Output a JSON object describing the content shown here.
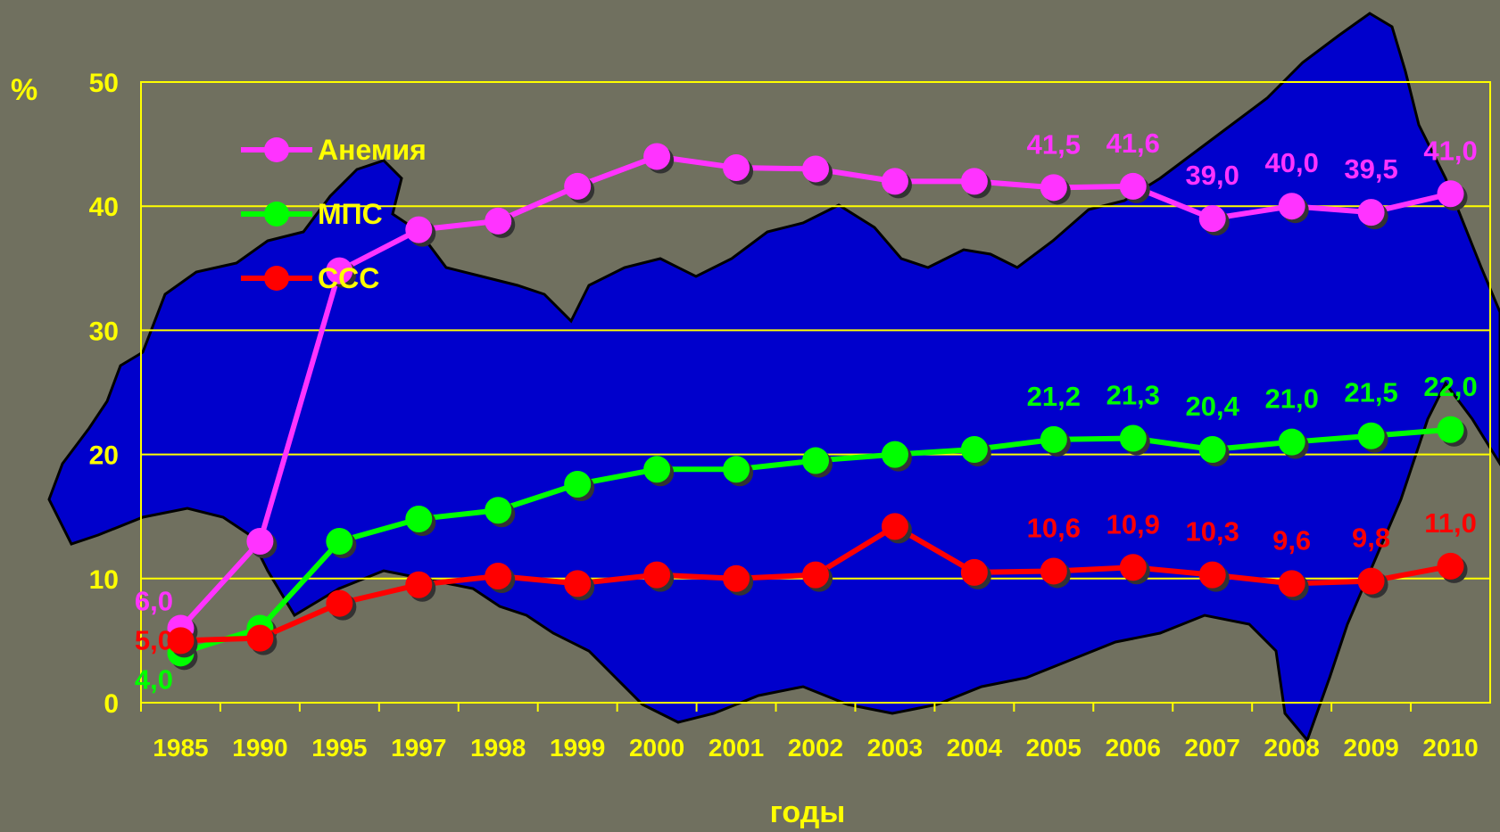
{
  "chart_data": {
    "type": "line",
    "ylabel": "%",
    "xlabel": "годы",
    "ylim": [
      0,
      50
    ],
    "yticks": [
      "0",
      "10",
      "20",
      "30",
      "40",
      "50"
    ],
    "grid": true,
    "legend_position": "top-left",
    "categories": [
      "1985",
      "1990",
      "1995",
      "1997",
      "1998",
      "1999",
      "2000",
      "2001",
      "2002",
      "2003",
      "2004",
      "2005",
      "2006",
      "2007",
      "2008",
      "2009",
      "2010"
    ],
    "series": [
      {
        "name": "Анемия",
        "color": "#ff33ff",
        "values": [
          6.0,
          13.0,
          34.8,
          38.1,
          38.8,
          41.6,
          44.0,
          43.1,
          43.0,
          42.0,
          42.0,
          41.5,
          41.6,
          39.0,
          40.0,
          39.5,
          41.0
        ],
        "labels": [
          "6,0",
          "",
          "",
          "",
          "",
          "",
          "",
          "",
          "",
          "",
          "",
          "41,5",
          "41,6",
          "39,0",
          "40,0",
          "39,5",
          "41,0"
        ]
      },
      {
        "name": "МПС",
        "color": "#00ff00",
        "values": [
          4.0,
          6.0,
          13.0,
          14.8,
          15.5,
          17.6,
          18.8,
          18.8,
          19.5,
          20.0,
          20.4,
          21.2,
          21.3,
          20.4,
          21.0,
          21.5,
          22.0
        ],
        "labels": [
          "4,0",
          "",
          "",
          "",
          "",
          "",
          "",
          "",
          "",
          "",
          "",
          "21,2",
          "21,3",
          "20,4",
          "21,0",
          "21,5",
          "22,0"
        ]
      },
      {
        "name": "ССС",
        "color": "#ff0000",
        "values": [
          5.0,
          5.2,
          8.0,
          9.5,
          10.2,
          9.6,
          10.3,
          10.0,
          10.3,
          14.2,
          10.5,
          10.6,
          10.9,
          10.3,
          9.6,
          9.8,
          11.0
        ],
        "labels": [
          "5,0",
          "",
          "",
          "",
          "",
          "",
          "",
          "",
          "",
          "",
          "",
          "10,6",
          "10,9",
          "10,3",
          "9,6",
          "9,8",
          "11,0"
        ]
      }
    ]
  },
  "colors": {
    "background": "#70705f",
    "map_fill": "#0000cc",
    "text": "#ffff00",
    "grid": "#ffff00"
  }
}
